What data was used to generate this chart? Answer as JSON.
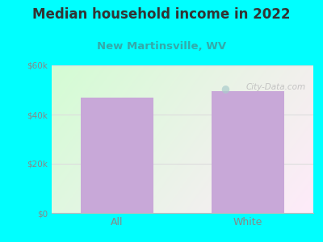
{
  "title": "Median household income in 2022",
  "subtitle": "New Martinsville, WV",
  "categories": [
    "All",
    "White"
  ],
  "values": [
    47000,
    49500
  ],
  "bar_color": "#c8a8d8",
  "background_outer": "#00FFFF",
  "title_fontsize": 12,
  "title_color": "#333333",
  "subtitle_fontsize": 9.5,
  "subtitle_color": "#33aaaa",
  "tick_label_color": "#888888",
  "ylim": [
    0,
    60000
  ],
  "yticks": [
    0,
    20000,
    40000,
    60000
  ],
  "ytick_labels": [
    "$0",
    "$20k",
    "$40k",
    "$60k"
  ],
  "watermark": "City-Data.com",
  "grid_color": "#dddddd"
}
